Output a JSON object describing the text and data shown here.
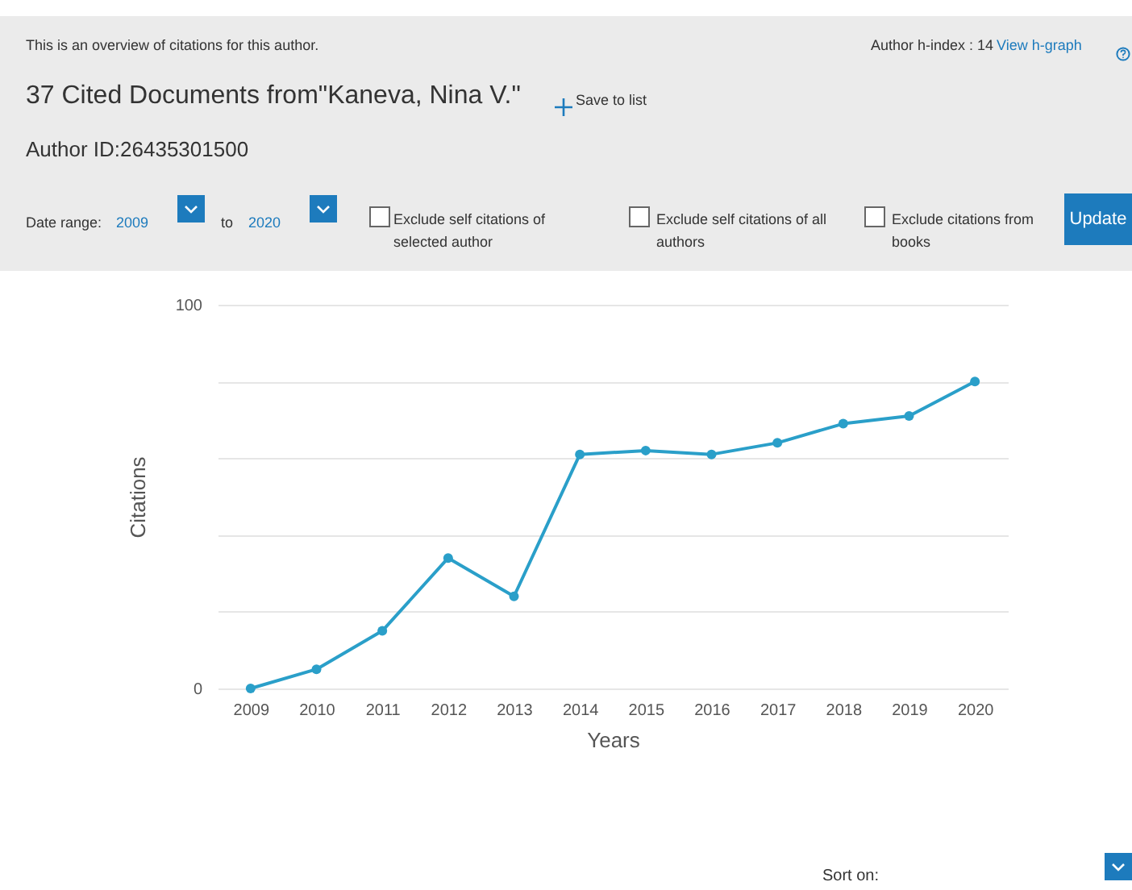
{
  "chart_data": {
    "type": "line",
    "title": "37 Cited Documents from\"Kaneva, Nina V.\"",
    "subtitle": "This is an overview of citations for this author.",
    "xlabel": "Years",
    "ylabel": "Citations",
    "categories": [
      "2009",
      "2010",
      "2011",
      "2012",
      "2013",
      "2014",
      "2015",
      "2016",
      "2017",
      "2018",
      "2019",
      "2020"
    ],
    "series": [
      {
        "color": "#2a9fc9",
        "values": [
          0,
          5,
          15,
          34,
          24,
          61,
          62,
          61,
          64,
          69,
          71,
          80
        ]
      }
    ],
    "ylim": [
      0,
      100
    ],
    "yticks": [
      0,
      {
        "value": 20,
        "label": null
      },
      {
        "value": 40,
        "label": null
      },
      {
        "value": 60,
        "label": null
      },
      {
        "value": 80,
        "label": null
      },
      100
    ],
    "grid": "y",
    "marker": "circle",
    "line_style": "solid",
    "annotations": [
      "Author ID:26435301500",
      "Author h-index : 14",
      "View h-graph",
      "Save to list",
      "Date range:",
      "2009",
      "to",
      "2020",
      "Exclude self citations of selected author",
      "Exclude self citations of all authors",
      "Exclude citations from books",
      "Update",
      "Sort on:"
    ]
  }
}
